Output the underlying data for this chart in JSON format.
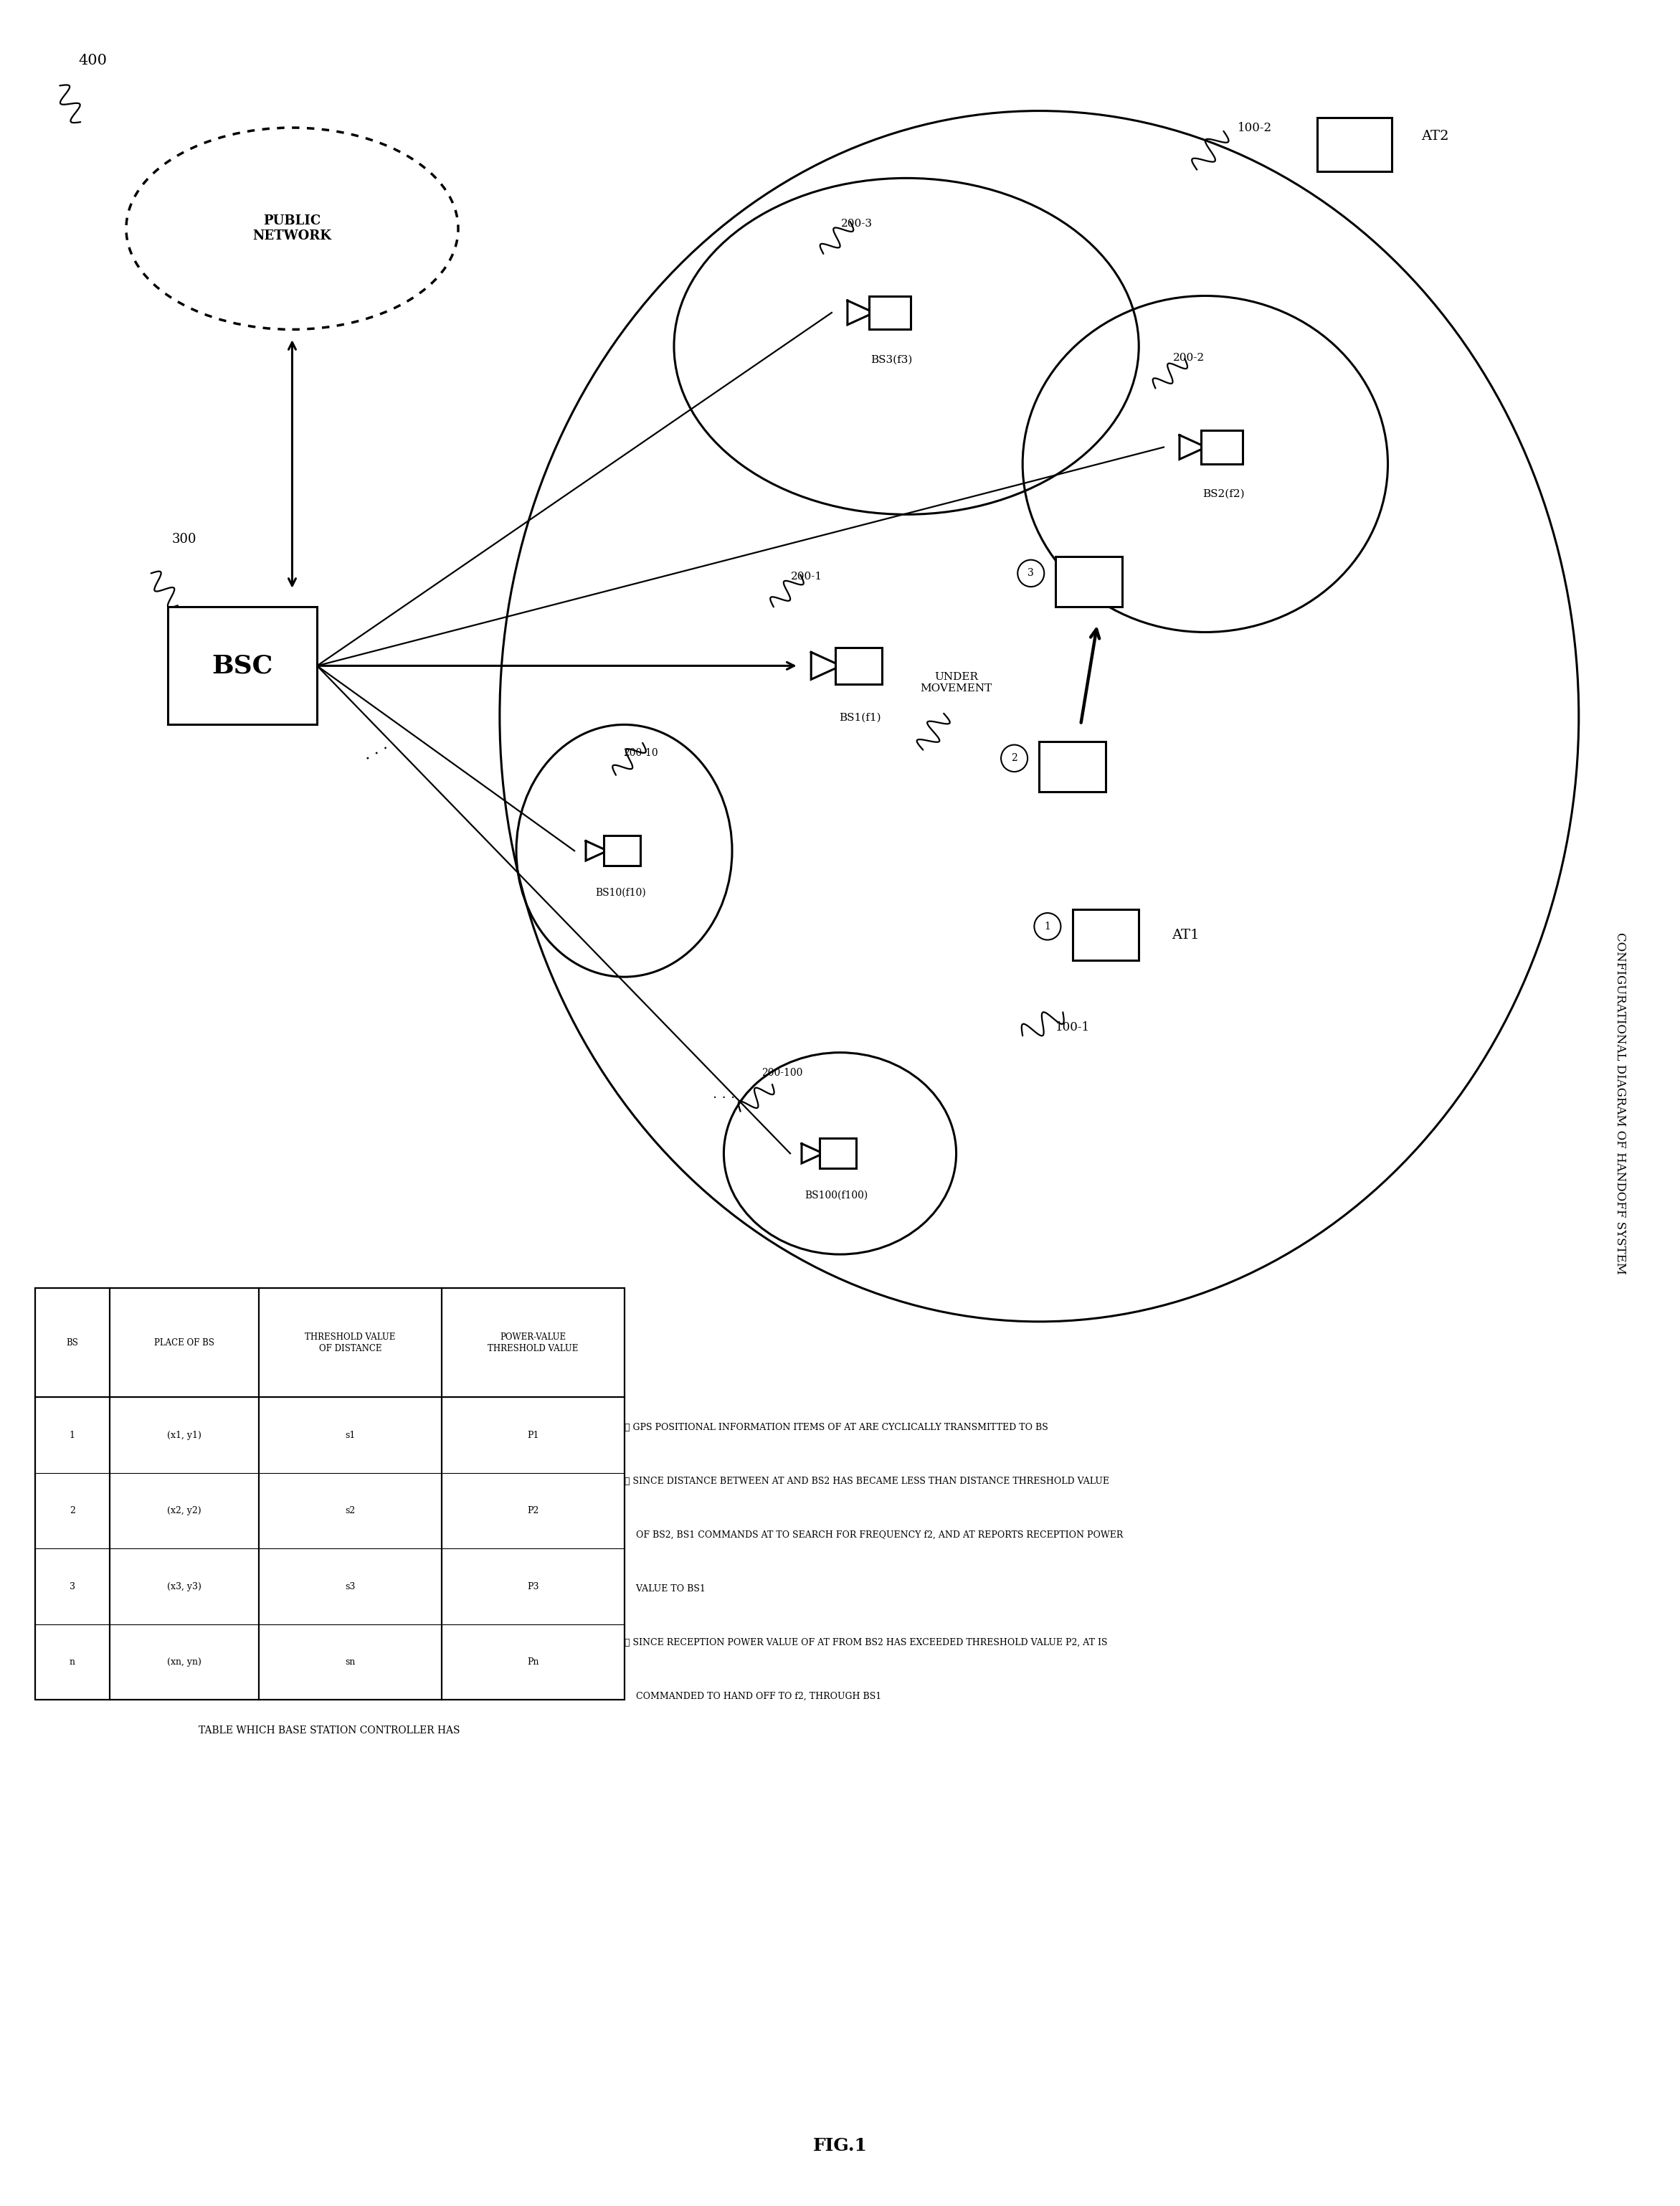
{
  "title": "FIG.1",
  "side_title": "CONFIGURATIONAL DIAGRAM OF HANDOFF SYSTEM",
  "bg_color": "#ffffff",
  "fig_width": 23.43,
  "fig_height": 30.76,
  "notes": [
    "① GPS POSITIONAL INFORMATION ITEMS OF AT ARE CYCLICALLY TRANSMITTED TO BS",
    "② SINCE DISTANCE BETWEEN AT AND BS2 HAS BECAME LESS THAN DISTANCE THRESHOLD VALUE",
    "    OF BS2, BS1 COMMANDS AT TO SEARCH FOR FREQUENCY f2, AND AT REPORTS RECEPTION POWER",
    "    VALUE TO BS1",
    "③ SINCE RECEPTION POWER VALUE OF AT FROM BS2 HAS EXCEEDED THRESHOLD VALUE P2, AT IS",
    "    COMMANDED TO HAND OFF TO f2, THROUGH BS1"
  ],
  "table_caption": "TABLE WHICH BASE STATION CONTROLLER HAS",
  "table_headers": [
    "BS",
    "PLACE OF BS",
    "THRESHOLD VALUE\nOF DISTANCE",
    "POWER-VALUE\nTHRESHOLD VALUE"
  ],
  "table_rows": [
    [
      "1",
      "(x1, y1)",
      "s1",
      "P1"
    ],
    [
      "2",
      "(x2, y2)",
      "s2",
      "P2"
    ],
    [
      "3",
      "(x3, y3)",
      "s3",
      "P3"
    ],
    [
      "n",
      "(xn, yn)",
      "sn",
      "Pn"
    ]
  ]
}
